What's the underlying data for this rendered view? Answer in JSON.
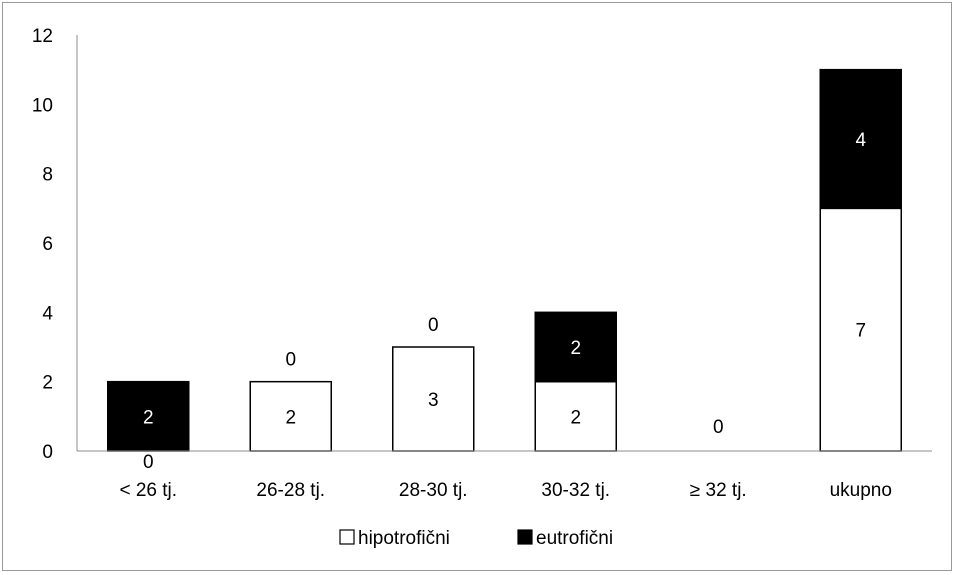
{
  "chart_data": {
    "type": "bar",
    "stacked": true,
    "categories": [
      "< 26 tj.",
      "26-28 tj.",
      "28-30 tj.",
      "30-32 tj.",
      "≥ 32 tj.",
      "ukupno"
    ],
    "series": [
      {
        "name": "hipotrofični",
        "values": [
          0,
          2,
          3,
          2,
          0,
          7
        ],
        "color": "#ffffff"
      },
      {
        "name": "eutrofični",
        "values": [
          2,
          0,
          0,
          2,
          0,
          4
        ],
        "color": "#000000"
      }
    ],
    "ylim": [
      0,
      12
    ],
    "yticks": [
      0,
      2,
      4,
      6,
      8,
      10,
      12
    ],
    "grid": false,
    "legend_position": "bottom",
    "title": "",
    "xlabel": "",
    "ylabel": ""
  }
}
